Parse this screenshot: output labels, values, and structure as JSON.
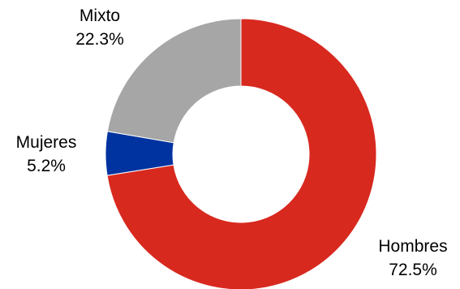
{
  "chart_data": {
    "type": "pie",
    "variant": "donut",
    "title": "",
    "legend": "none",
    "series": [
      {
        "slices": [
          {
            "label": "Hombres",
            "value": 72.5,
            "value_label": "72.5%",
            "color": "#d8291f"
          },
          {
            "label": "Mujeres",
            "value": 5.2,
            "value_label": "5.2%",
            "color": "#0033a0"
          },
          {
            "label": "Mixto",
            "value": 22.3,
            "value_label": "22.3%",
            "color": "#a6a6a6"
          }
        ]
      }
    ]
  }
}
